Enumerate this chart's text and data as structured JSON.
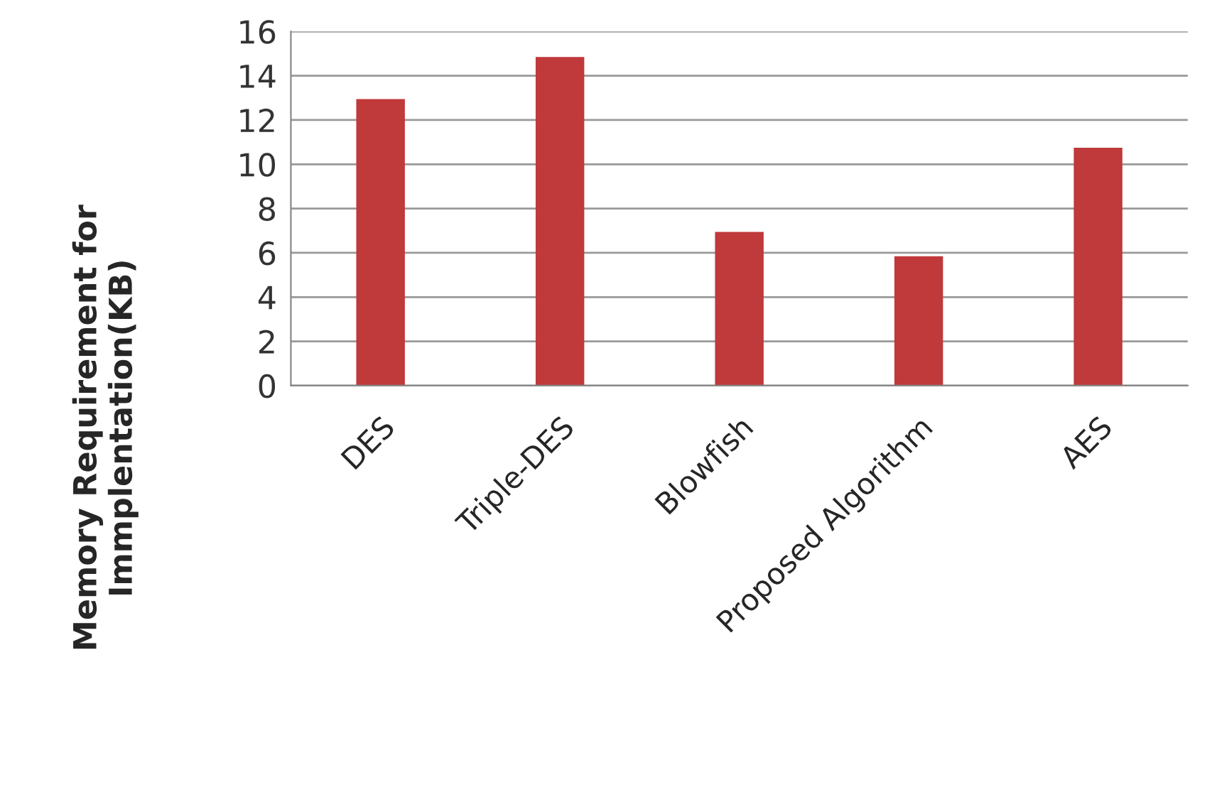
{
  "chart_data": {
    "type": "bar",
    "ylabel": "Memory Requirement for\nImmplentation(KB)",
    "categories": [
      "DES",
      "Triple-DES",
      "Blowfish",
      "Proposed Algorithm",
      "AES"
    ],
    "values": [
      12.9,
      14.8,
      6.9,
      5.8,
      10.7
    ],
    "color": "#c0393b",
    "ylim": [
      0,
      16
    ],
    "yticks": [
      0,
      2,
      4,
      6,
      8,
      10,
      12,
      14,
      16
    ],
    "grid": "y"
  }
}
